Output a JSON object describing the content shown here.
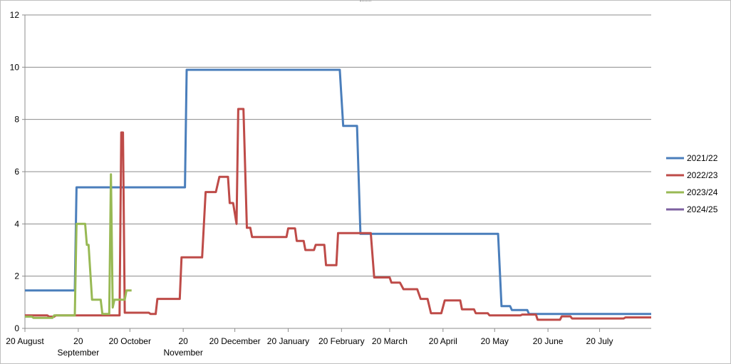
{
  "chart_data": {
    "type": "line",
    "title": "",
    "xlabel": "",
    "ylabel": "",
    "ylim": [
      0,
      12
    ],
    "yticks": [
      0,
      2,
      4,
      6,
      8,
      10,
      12
    ],
    "xlim": [
      "2021-08-20",
      "2022-08-19"
    ],
    "xticks": [
      {
        "date": "2021-08-20",
        "label": "20 August",
        "row": 0
      },
      {
        "date": "2021-09-20",
        "label": "20 September",
        "row": 1
      },
      {
        "date": "2021-10-20",
        "label": "20 October",
        "row": 0
      },
      {
        "date": "2021-11-20",
        "label": "20 November",
        "row": 1
      },
      {
        "date": "2021-12-20",
        "label": "20 December",
        "row": 0
      },
      {
        "date": "2022-01-20",
        "label": "20 January",
        "row": 0
      },
      {
        "date": "2022-02-20",
        "label": "20 February",
        "row": 0
      },
      {
        "date": "2022-03-20",
        "label": "20 March",
        "row": 0
      },
      {
        "date": "2022-04-20",
        "label": "20 April",
        "row": 0
      },
      {
        "date": "2022-05-20",
        "label": "20 May",
        "row": 0
      },
      {
        "date": "2022-06-20",
        "label": "20 June",
        "row": 0
      },
      {
        "date": "2022-07-20",
        "label": "20 July",
        "row": 0
      }
    ],
    "grid": "horizontal",
    "legend_position": "right",
    "series": [
      {
        "name": "2021/22",
        "color": "#4a7ebb",
        "points": [
          [
            "2021-08-20",
            1.45
          ],
          [
            "2021-09-18",
            1.45
          ],
          [
            "2021-09-19",
            5.4
          ],
          [
            "2021-11-21",
            5.4
          ],
          [
            "2021-11-22",
            9.9
          ],
          [
            "2022-02-19",
            9.9
          ],
          [
            "2022-02-21",
            7.75
          ],
          [
            "2022-03-01",
            7.75
          ],
          [
            "2022-03-03",
            3.62
          ],
          [
            "2022-05-22",
            3.62
          ],
          [
            "2022-05-24",
            0.85
          ],
          [
            "2022-05-29",
            0.85
          ],
          [
            "2022-05-30",
            0.7
          ],
          [
            "2022-06-08",
            0.7
          ],
          [
            "2022-06-09",
            0.55
          ],
          [
            "2022-08-19",
            0.55
          ]
        ]
      },
      {
        "name": "2022/23",
        "color": "#be4b48",
        "points": [
          [
            "2021-08-20",
            0.5
          ],
          [
            "2021-09-02",
            0.5
          ],
          [
            "2021-09-03",
            0.45
          ],
          [
            "2021-09-06",
            0.45
          ],
          [
            "2021-09-07",
            0.5
          ],
          [
            "2021-10-14",
            0.5
          ],
          [
            "2021-10-15",
            7.5
          ],
          [
            "2021-10-16",
            7.5
          ],
          [
            "2021-10-17",
            0.6
          ],
          [
            "2021-10-31",
            0.6
          ],
          [
            "2021-11-01",
            0.55
          ],
          [
            "2021-11-04",
            0.55
          ],
          [
            "2021-11-05",
            1.13
          ],
          [
            "2021-11-18",
            1.13
          ],
          [
            "2021-11-19",
            2.72
          ],
          [
            "2021-12-01",
            2.72
          ],
          [
            "2021-12-03",
            5.22
          ],
          [
            "2021-12-09",
            5.22
          ],
          [
            "2021-12-11",
            5.8
          ],
          [
            "2021-12-16",
            5.8
          ],
          [
            "2021-12-17",
            4.8
          ],
          [
            "2021-12-19",
            4.8
          ],
          [
            "2021-12-21",
            4.0
          ],
          [
            "2021-12-22",
            8.4
          ],
          [
            "2021-12-25",
            8.4
          ],
          [
            "2021-12-27",
            3.85
          ],
          [
            "2021-12-29",
            3.85
          ],
          [
            "2021-12-30",
            3.5
          ],
          [
            "2022-01-19",
            3.5
          ],
          [
            "2022-01-20",
            3.83
          ],
          [
            "2022-01-24",
            3.83
          ],
          [
            "2022-01-25",
            3.35
          ],
          [
            "2022-01-29",
            3.35
          ],
          [
            "2022-01-30",
            3.0
          ],
          [
            "2022-02-04",
            3.0
          ],
          [
            "2022-02-05",
            3.2
          ],
          [
            "2022-02-10",
            3.2
          ],
          [
            "2022-02-11",
            2.42
          ],
          [
            "2022-02-17",
            2.42
          ],
          [
            "2022-02-18",
            3.65
          ],
          [
            "2022-03-09",
            3.65
          ],
          [
            "2022-03-11",
            1.95
          ],
          [
            "2022-03-20",
            1.95
          ],
          [
            "2022-03-21",
            1.75
          ],
          [
            "2022-03-26",
            1.75
          ],
          [
            "2022-03-28",
            1.5
          ],
          [
            "2022-04-05",
            1.5
          ],
          [
            "2022-04-07",
            1.13
          ],
          [
            "2022-04-11",
            1.13
          ],
          [
            "2022-04-13",
            0.58
          ],
          [
            "2022-04-19",
            0.58
          ],
          [
            "2022-04-21",
            1.07
          ],
          [
            "2022-04-30",
            1.07
          ],
          [
            "2022-05-01",
            0.73
          ],
          [
            "2022-05-08",
            0.73
          ],
          [
            "2022-05-09",
            0.58
          ],
          [
            "2022-05-16",
            0.58
          ],
          [
            "2022-05-17",
            0.5
          ],
          [
            "2022-06-04",
            0.5
          ],
          [
            "2022-06-05",
            0.53
          ],
          [
            "2022-06-13",
            0.53
          ],
          [
            "2022-06-14",
            0.33
          ],
          [
            "2022-06-27",
            0.33
          ],
          [
            "2022-06-28",
            0.46
          ],
          [
            "2022-07-03",
            0.46
          ],
          [
            "2022-07-04",
            0.38
          ],
          [
            "2022-08-03",
            0.38
          ],
          [
            "2022-08-04",
            0.42
          ],
          [
            "2022-08-19",
            0.42
          ]
        ]
      },
      {
        "name": "2023/24",
        "color": "#98b954",
        "points": [
          [
            "2021-08-20",
            0.45
          ],
          [
            "2021-08-24",
            0.45
          ],
          [
            "2021-08-25",
            0.4
          ],
          [
            "2021-09-05",
            0.4
          ],
          [
            "2021-09-06",
            0.5
          ],
          [
            "2021-09-18",
            0.5
          ],
          [
            "2021-09-19",
            4.0
          ],
          [
            "2021-09-24",
            4.0
          ],
          [
            "2021-09-25",
            3.2
          ],
          [
            "2021-09-26",
            3.2
          ],
          [
            "2021-09-28",
            1.1
          ],
          [
            "2021-10-03",
            1.1
          ],
          [
            "2021-10-04",
            0.55
          ],
          [
            "2021-10-08",
            0.55
          ],
          [
            "2021-10-09",
            5.9
          ],
          [
            "2021-10-10",
            0.8
          ],
          [
            "2021-10-11",
            1.1
          ],
          [
            "2021-10-17",
            1.1
          ],
          [
            "2021-10-18",
            1.45
          ],
          [
            "2021-10-21",
            1.45
          ]
        ]
      },
      {
        "name": "2024/25",
        "color": "#7d60a0",
        "points": []
      }
    ]
  }
}
